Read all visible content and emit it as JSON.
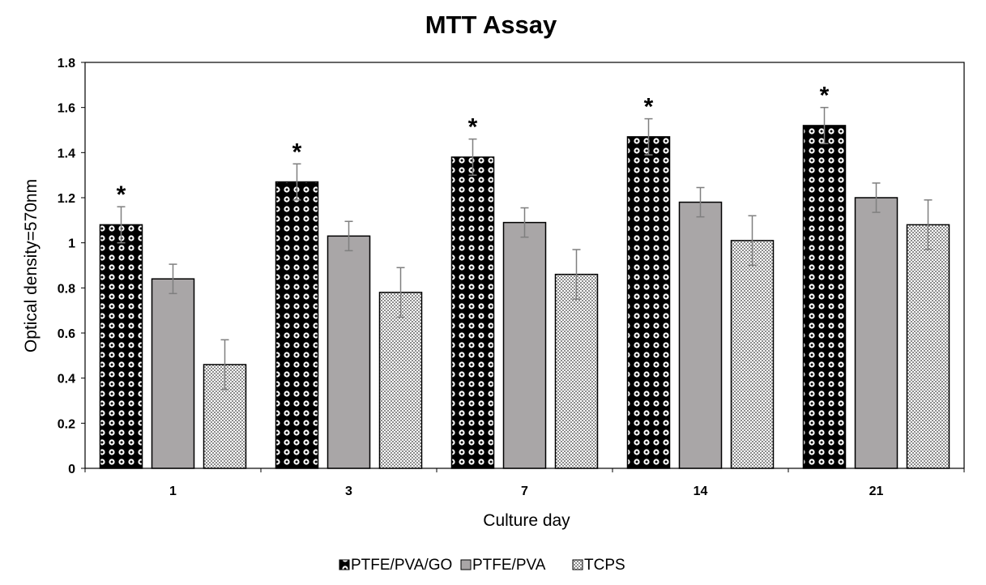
{
  "chart_data": {
    "type": "bar",
    "title": "MTT Assay",
    "xlabel": "Culture day",
    "ylabel": "Optical density=570nm",
    "categories": [
      "1",
      "3",
      "7",
      "14",
      "21"
    ],
    "ylim": [
      0,
      1.8
    ],
    "yticks": [
      0,
      0.2,
      0.4,
      0.6,
      0.8,
      1,
      1.2,
      1.4,
      1.6,
      1.8
    ],
    "ytick_labels": [
      "0",
      "0.2",
      "0.4",
      "0.6",
      "0.8",
      "1",
      "1.2",
      "1.4",
      "1.6",
      "1.8"
    ],
    "grid": false,
    "legend_position": "bottom",
    "significance_marker": "*",
    "series": [
      {
        "name": "PTFE/PVA/GO",
        "pattern": "dots",
        "values": [
          1.08,
          1.27,
          1.38,
          1.47,
          1.52
        ],
        "errors": [
          0.08,
          0.08,
          0.08,
          0.08,
          0.08
        ],
        "significant": [
          true,
          true,
          true,
          true,
          true
        ]
      },
      {
        "name": "PTFE/PVA",
        "pattern": "solid",
        "values": [
          0.84,
          1.03,
          1.09,
          1.18,
          1.2
        ],
        "errors": [
          0.065,
          0.065,
          0.065,
          0.065,
          0.065
        ],
        "significant": [
          false,
          false,
          false,
          false,
          false
        ]
      },
      {
        "name": "TCPS",
        "pattern": "checker",
        "values": [
          0.46,
          0.78,
          0.86,
          1.01,
          1.08
        ],
        "errors": [
          0.11,
          0.11,
          0.11,
          0.11,
          0.11
        ],
        "significant": [
          false,
          false,
          false,
          false,
          false
        ]
      }
    ]
  },
  "colors": {
    "dots_bg": "#000000",
    "dots_fg": "#ffffff",
    "solid": "#a9a6a7",
    "checker_fg": "#8c8c8c",
    "checker_bg": "#ffffff",
    "errorbar": "#7f7f7f",
    "axis": "#000000"
  }
}
